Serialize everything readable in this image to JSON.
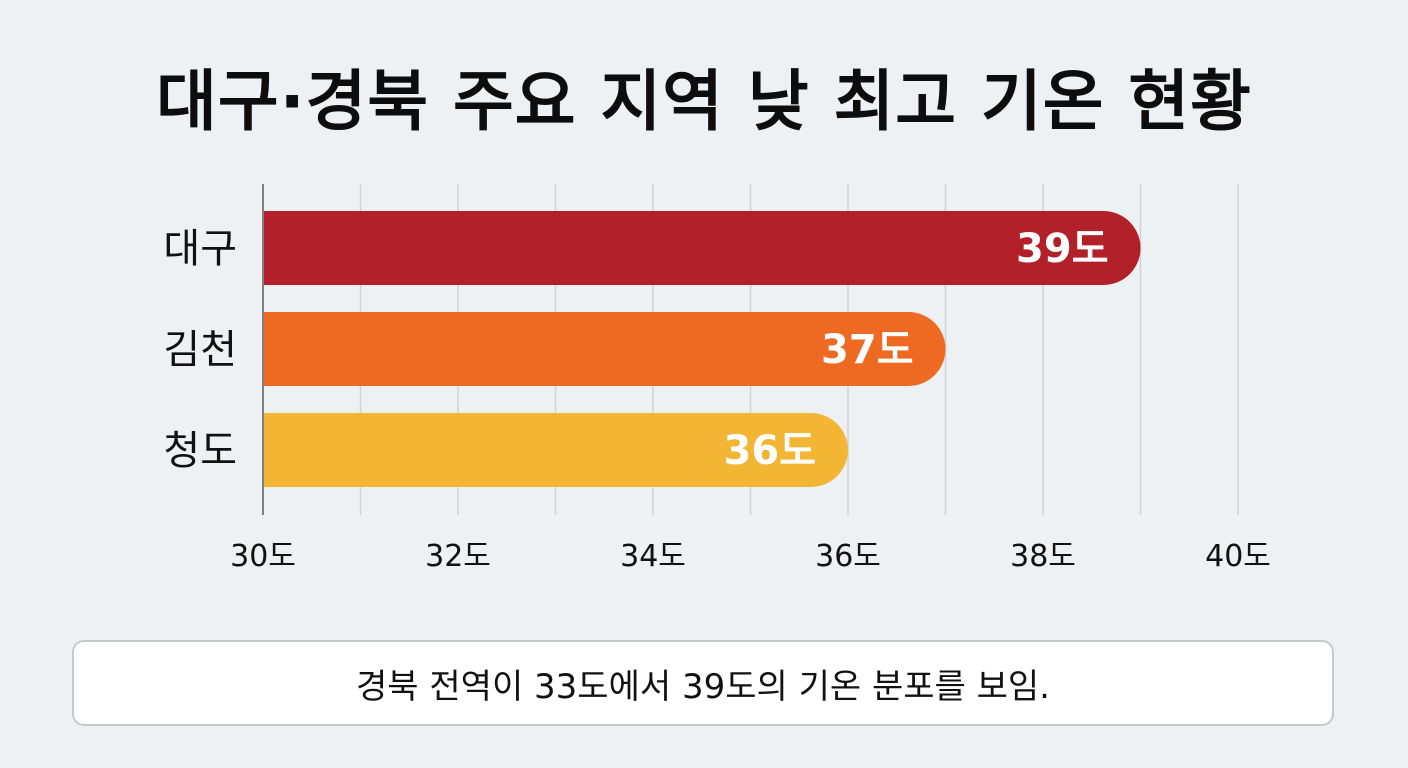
{
  "title": "대구·경북 주요 지역 낮 최고 기온 현황",
  "chart_data": {
    "type": "bar",
    "orientation": "horizontal",
    "categories": [
      "대구",
      "김천",
      "청도"
    ],
    "values": [
      39,
      37,
      36
    ],
    "data_labels": [
      "39도",
      "37도",
      "36도"
    ],
    "colors": [
      "#b2202a",
      "#ee6a22",
      "#f3b634"
    ],
    "xlim": [
      30,
      40
    ],
    "x_ticks": [
      30,
      32,
      34,
      36,
      38,
      40
    ],
    "x_tick_labels": [
      "30도",
      "32도",
      "34도",
      "36도",
      "38도",
      "40도"
    ],
    "grid": "vertical",
    "title": "대구·경북 주요 지역 낮 최고 기온 현황"
  },
  "note": "경북 전역이 33도에서 39도의 기온 분포를 보임."
}
